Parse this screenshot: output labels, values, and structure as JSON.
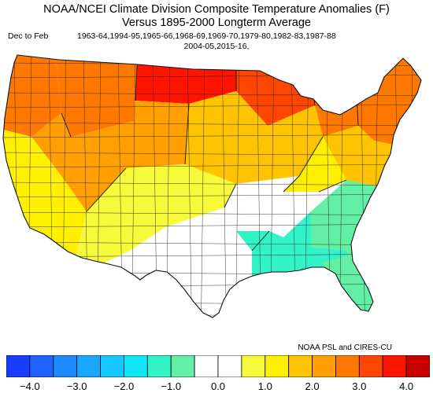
{
  "title": {
    "line1": "NOAA/NCEI Climate Division Composite Temperature Anomalies (F)",
    "line2": "Versus 1895-2000 Longterm Average"
  },
  "subtitle": {
    "period_label": "Dec to Feb",
    "years_line1": "1963-64,1994-95,1965-66,1968-69,1969-70,1979-80,1982-83,1987-88",
    "years_line2": "2004-05,2015-16,"
  },
  "credit": "NOAA PSL and CIRES-CU",
  "colors": {
    "background": "#ffffff",
    "region_stroke": "#222222"
  },
  "colorbar": {
    "bins": [
      {
        "range": "-4.5 to -4.0",
        "color": "#1a3cff"
      },
      {
        "range": "-4.0 to -3.5",
        "color": "#1f62ff"
      },
      {
        "range": "-3.5 to -3.0",
        "color": "#1e88ff"
      },
      {
        "range": "-3.0 to -2.5",
        "color": "#1aa8ff"
      },
      {
        "range": "-2.5 to -2.0",
        "color": "#14c8ff"
      },
      {
        "range": "-2.0 to -1.5",
        "color": "#10e6f5"
      },
      {
        "range": "-1.5 to -1.0",
        "color": "#32f2c8"
      },
      {
        "range": "-1.0 to -0.5",
        "color": "#64f0a4"
      },
      {
        "range": "-0.5 to 0.0",
        "color": "#ffffff"
      },
      {
        "range": "0.0 to 0.5",
        "color": "#ffffff"
      },
      {
        "range": "0.5 to 1.0",
        "color": "#f6fa3a"
      },
      {
        "range": "1.0 to 1.5",
        "color": "#fff000"
      },
      {
        "range": "1.5 to 2.0",
        "color": "#ffc400"
      },
      {
        "range": "2.0 to 2.5",
        "color": "#ffa000"
      },
      {
        "range": "2.5 to 3.0",
        "color": "#ff7800"
      },
      {
        "range": "3.0 to 3.5",
        "color": "#ff4600"
      },
      {
        "range": "3.5 to 4.0",
        "color": "#ff1400"
      },
      {
        "range": "4.0 to 4.5",
        "color": "#c80000"
      }
    ],
    "min": -4.5,
    "max": 4.5,
    "tick_values": [
      -4.0,
      -3.0,
      -2.0,
      -1.0,
      0.0,
      1.0,
      2.0,
      3.0,
      4.0
    ],
    "tick_labels": [
      "-4.0",
      "-3.0",
      "-2.0",
      "-1.0",
      "0.0",
      "1.0",
      "2.0",
      "3.0",
      "4.0"
    ]
  },
  "regions": [
    {
      "name": "pacific-northwest",
      "anomaly_class": "2.5 to 3.0",
      "color": "#ff7800"
    },
    {
      "name": "northern-rockies",
      "anomaly_class": "2.5 to 3.0",
      "color": "#ff7800"
    },
    {
      "name": "northern-plains",
      "anomaly_class": "3.5 to 4.0",
      "color": "#ff1400"
    },
    {
      "name": "upper-midwest",
      "anomaly_class": "3.0 to 3.5",
      "color": "#ff4600"
    },
    {
      "name": "great-lakes",
      "anomaly_class": "2.5 to 3.0",
      "color": "#ff7800"
    },
    {
      "name": "northeast",
      "anomaly_class": "2.5 to 3.0",
      "color": "#ff7800"
    },
    {
      "name": "mid-atlantic",
      "anomaly_class": "1.5 to 2.0",
      "color": "#ffc400"
    },
    {
      "name": "california-coast",
      "anomaly_class": "1.0 to 1.5",
      "color": "#fff000"
    },
    {
      "name": "great-basin",
      "anomaly_class": "2.0 to 2.5",
      "color": "#ffa000"
    },
    {
      "name": "central-rockies",
      "anomaly_class": "2.0 to 2.5",
      "color": "#ffa000"
    },
    {
      "name": "central-plains",
      "anomaly_class": "1.5 to 2.0",
      "color": "#ffc400"
    },
    {
      "name": "ohio-valley",
      "anomaly_class": "1.0 to 1.5",
      "color": "#fff000"
    },
    {
      "name": "southwest",
      "anomaly_class": "0.5 to 1.0",
      "color": "#f6fa3a"
    },
    {
      "name": "southern-plains",
      "anomaly_class": "-0.5 to 0.5",
      "color": "#ffffff"
    },
    {
      "name": "texas",
      "anomaly_class": "-0.5 to 0.5",
      "color": "#ffffff"
    },
    {
      "name": "tennessee-valley",
      "anomaly_class": "-0.5 to 0.5",
      "color": "#ffffff"
    },
    {
      "name": "southeast",
      "anomaly_class": "-1.0 to -0.5",
      "color": "#64f0a4"
    },
    {
      "name": "gulf-coast",
      "anomaly_class": "-1.5 to -1.0",
      "color": "#32f2c8"
    },
    {
      "name": "florida",
      "anomaly_class": "-1.0 to -0.5",
      "color": "#64f0a4"
    }
  ]
}
